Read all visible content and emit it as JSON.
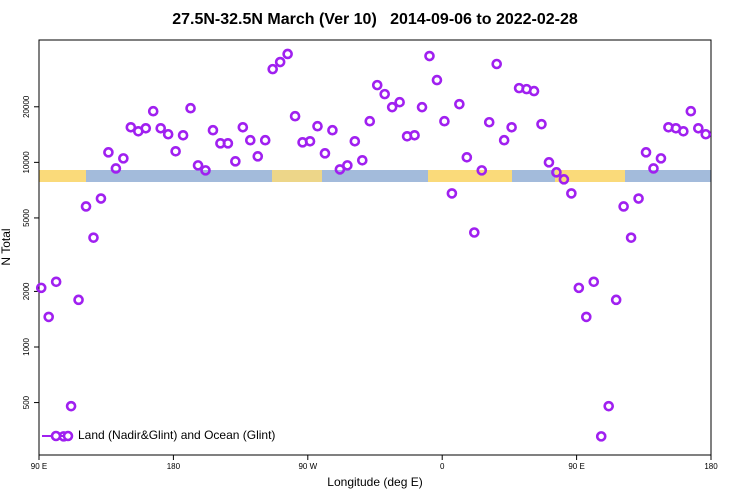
{
  "chart_data": {
    "type": "scatter",
    "title": "27.5N-32.5N March (Ver 10)   2014-09-06 to 2022-02-28",
    "x_label": "Longitude (deg E)",
    "y_label": "N Total",
    "xlim": [
      90,
      540
    ],
    "xticks": [
      {
        "value": 90,
        "label": "90 E"
      },
      180,
      {
        "value": 270,
        "label": "90 W"
      },
      {
        "value": 360,
        "label": "0"
      },
      {
        "value": 450,
        "label": "90 E"
      },
      {
        "value": 540,
        "label": "180"
      }
    ],
    "ylim": [
      260,
      46000
    ],
    "yscale": "log",
    "yticks": [
      500,
      1000,
      2000,
      5000,
      10000,
      20000
    ],
    "legend": "lower left",
    "series": [
      {
        "name": "Land (Nadir&Glint) and Ocean (Glint)",
        "color": "#a020f0",
        "x": [
          91.5,
          96.5,
          101.5,
          106.5,
          111.5,
          116.5,
          121.5,
          126.5,
          131.5,
          136.5,
          141.5,
          146.5,
          151.5,
          156.5,
          161.5,
          166.5,
          171.5,
          176.5,
          181.5,
          186.5,
          191.5,
          196.5,
          201.5,
          206.5,
          211.5,
          216.5,
          221.5,
          226.5,
          231.5,
          236.5,
          241.5,
          246.5,
          251.5,
          256.5,
          261.5,
          266.5,
          271.5,
          276.5,
          281.5,
          286.5,
          291.5,
          296.5,
          301.5,
          306.5,
          311.5,
          316.5,
          321.5,
          326.5,
          331.5,
          336.5,
          341.5,
          346.5,
          351.5,
          356.5,
          361.5,
          366.5,
          371.5,
          376.5,
          381.5,
          386.5,
          391.5,
          396.5,
          401.5,
          406.5,
          411.5,
          416.5,
          421.5,
          426.5,
          431.5,
          436.5,
          441.5,
          446.5,
          451.5,
          456.5,
          461.5,
          466.5,
          471.5,
          476.5,
          481.5,
          486.5,
          491.5,
          496.5,
          501.5,
          506.5,
          511.5,
          516.5,
          521.5,
          526.5,
          531.5,
          536.5
        ],
        "values": [
          2090,
          1455,
          2255,
          328,
          478,
          1800,
          5770,
          3910,
          6370,
          11330,
          9270,
          10510,
          15490,
          14730,
          15300,
          18930,
          15300,
          14200,
          11480,
          14020,
          19650,
          9630,
          9050,
          14930,
          12680,
          12680,
          10130,
          15490,
          13180,
          10780,
          13180,
          31990,
          34950,
          38640,
          17780,
          12840,
          13010,
          15700,
          11190,
          14930,
          9160,
          9630,
          13010,
          10260,
          16710,
          26200,
          23420,
          19900,
          21180,
          13840,
          14020,
          19900,
          37670,
          27900,
          16710,
          6790,
          20660,
          10650,
          4170,
          9050,
          16490,
          34100,
          13180,
          15490,
          25240,
          24930,
          24320,
          16100,
          10000,
          8830,
          8090,
          6790,
          2090,
          1455,
          2255,
          328,
          478,
          1800,
          5770,
          3910,
          6370,
          11330,
          9270,
          10510,
          15490,
          15300,
          14730,
          18930,
          15300,
          14200
        ]
      }
    ]
  }
}
